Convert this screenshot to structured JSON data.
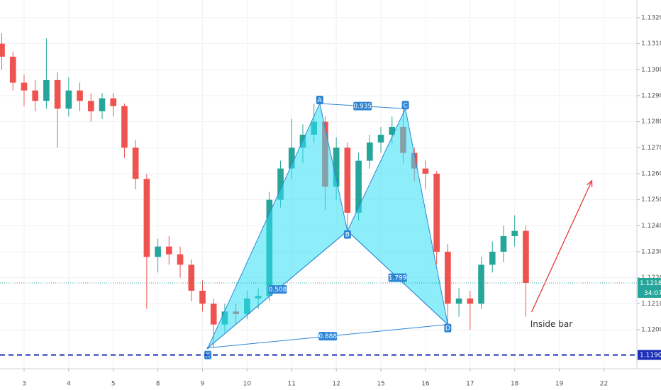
{
  "chart_data": {
    "type": "candlestick",
    "x": [
      -0.5,
      -0.25,
      0,
      0.25,
      0.5,
      0.75,
      1,
      1.25,
      1.5,
      1.75,
      2,
      2.25,
      2.5,
      2.75,
      3,
      3.25,
      3.5,
      3.75,
      4,
      4.25,
      4.5,
      4.75,
      5,
      5.25,
      5.5,
      5.75,
      6,
      6.25,
      6.5,
      6.75,
      7,
      7.25,
      7.5,
      7.75,
      8,
      8.25,
      8.5,
      8.75,
      9,
      9.25,
      9.5,
      9.75,
      10,
      10.25,
      10.5,
      10.75,
      11,
      11.25
    ],
    "open": [
      1.131,
      1.1305,
      1.1295,
      1.1292,
      1.1288,
      1.1296,
      1.1285,
      1.1292,
      1.1288,
      1.1284,
      1.1289,
      1.1286,
      1.127,
      1.1258,
      1.1228,
      1.1232,
      1.1229,
      1.1225,
      1.1215,
      1.121,
      1.1202,
      1.1207,
      1.1206,
      1.1212,
      1.1213,
      1.125,
      1.1262,
      1.127,
      1.1275,
      1.128,
      1.1255,
      1.127,
      1.1245,
      1.1265,
      1.1272,
      1.1275,
      1.1278,
      1.1268,
      1.1262,
      1.126,
      1.123,
      1.121,
      1.1212,
      1.121,
      1.1225,
      1.123,
      1.1236,
      1.1238
    ],
    "high": [
      1.1314,
      1.1307,
      1.1298,
      1.1296,
      1.1312,
      1.1299,
      1.1297,
      1.1295,
      1.1291,
      1.1291,
      1.1291,
      1.1287,
      1.1273,
      1.126,
      1.1235,
      1.1236,
      1.1232,
      1.1227,
      1.1219,
      1.1212,
      1.121,
      1.121,
      1.1215,
      1.1216,
      1.1253,
      1.1265,
      1.1281,
      1.1279,
      1.1287,
      1.1282,
      1.1274,
      1.1272,
      1.1268,
      1.1275,
      1.1278,
      1.1282,
      1.1285,
      1.127,
      1.1265,
      1.1261,
      1.1233,
      1.1216,
      1.1215,
      1.1228,
      1.1234,
      1.124,
      1.1244,
      1.124
    ],
    "low": [
      1.13,
      1.1292,
      1.1286,
      1.1284,
      1.1285,
      1.127,
      1.1282,
      1.1284,
      1.128,
      1.1281,
      1.1282,
      1.1266,
      1.1254,
      1.1208,
      1.1222,
      1.1225,
      1.122,
      1.1211,
      1.1207,
      1.1193,
      1.1199,
      1.1202,
      1.1204,
      1.1208,
      1.1211,
      1.1247,
      1.1258,
      1.1264,
      1.1272,
      1.1246,
      1.125,
      1.1238,
      1.1242,
      1.1262,
      1.1268,
      1.1271,
      1.1264,
      1.1257,
      1.1254,
      1.1225,
      1.1202,
      1.1205,
      1.12,
      1.1208,
      1.1222,
      1.1226,
      1.1232,
      1.1205
    ],
    "close": [
      1.1305,
      1.1295,
      1.1292,
      1.1288,
      1.1296,
      1.1285,
      1.1292,
      1.1288,
      1.1284,
      1.1289,
      1.1286,
      1.127,
      1.1258,
      1.1228,
      1.1232,
      1.1229,
      1.1225,
      1.1215,
      1.121,
      1.1202,
      1.1207,
      1.1206,
      1.1212,
      1.1213,
      1.125,
      1.1262,
      1.127,
      1.1275,
      1.128,
      1.1255,
      1.127,
      1.1245,
      1.1265,
      1.1272,
      1.1275,
      1.1278,
      1.1268,
      1.1262,
      1.126,
      1.123,
      1.121,
      1.1212,
      1.121,
      1.1225,
      1.123,
      1.1236,
      1.1238,
      1.1218
    ],
    "up_color": "#26a69a",
    "down_color": "#ef5350",
    "xlim": [
      -0.54,
      13.74
    ],
    "xticks": [
      {
        "value": 0,
        "label": "3"
      },
      {
        "value": 1,
        "label": "4"
      },
      {
        "value": 2,
        "label": "5"
      },
      {
        "value": 3,
        "label": "8"
      },
      {
        "value": 4,
        "label": "9"
      },
      {
        "value": 5,
        "label": "10"
      },
      {
        "value": 6,
        "label": "11"
      },
      {
        "value": 7,
        "label": "12"
      },
      {
        "value": 8,
        "label": "15"
      },
      {
        "value": 9,
        "label": "16"
      },
      {
        "value": 10,
        "label": "17"
      },
      {
        "value": 11,
        "label": "18"
      },
      {
        "value": 12,
        "label": "19"
      },
      {
        "value": 13,
        "label": "22"
      }
    ],
    "ylim": [
      1.1185,
      1.13268
    ],
    "yticks": [
      {
        "value": 1.12,
        "label": "1.12000"
      },
      {
        "value": 1.121,
        "label": "1.12100"
      },
      {
        "value": 1.122,
        "label": "1.12200"
      },
      {
        "value": 1.123,
        "label": "1.12300"
      },
      {
        "value": 1.124,
        "label": "1.12400"
      },
      {
        "value": 1.125,
        "label": "1.12500"
      },
      {
        "value": 1.126,
        "label": "1.12600"
      },
      {
        "value": 1.127,
        "label": "1.12700"
      },
      {
        "value": 1.128,
        "label": "1.12800"
      },
      {
        "value": 1.129,
        "label": "1.12900"
      },
      {
        "value": 1.13,
        "label": "1.13000"
      },
      {
        "value": 1.131,
        "label": "1.13100"
      },
      {
        "value": 1.132,
        "label": "1.13200"
      }
    ],
    "grid": true,
    "price_line": {
      "value": 1.1218,
      "label": "1.12180",
      "countdown": "34:07",
      "color": "#26a69a"
    },
    "support_line": {
      "value": 1.11903,
      "label": "1.11903",
      "color": "#1c2fb8"
    },
    "pattern": {
      "color": "#2f86d6",
      "fill": "#2fe0f5",
      "points": [
        {
          "name": "X",
          "x": 4.12,
          "y": 1.1193
        },
        {
          "name": "A",
          "x": 6.63,
          "y": 1.1287
        },
        {
          "name": "B",
          "x": 7.25,
          "y": 1.1238
        },
        {
          "name": "C",
          "x": 8.55,
          "y": 1.1285
        },
        {
          "name": "D",
          "x": 9.5,
          "y": 1.1202
        }
      ],
      "ratios": [
        0.508,
        0.935,
        1.799,
        0.888
      ]
    },
    "arrow": {
      "x": [
        11.38,
        12.73
      ],
      "y": [
        1.12068,
        1.12573
      ],
      "color": "#e53935"
    },
    "annotation": {
      "text": "Inside bar",
      "x": 11.35,
      "y": 1.1202
    }
  }
}
